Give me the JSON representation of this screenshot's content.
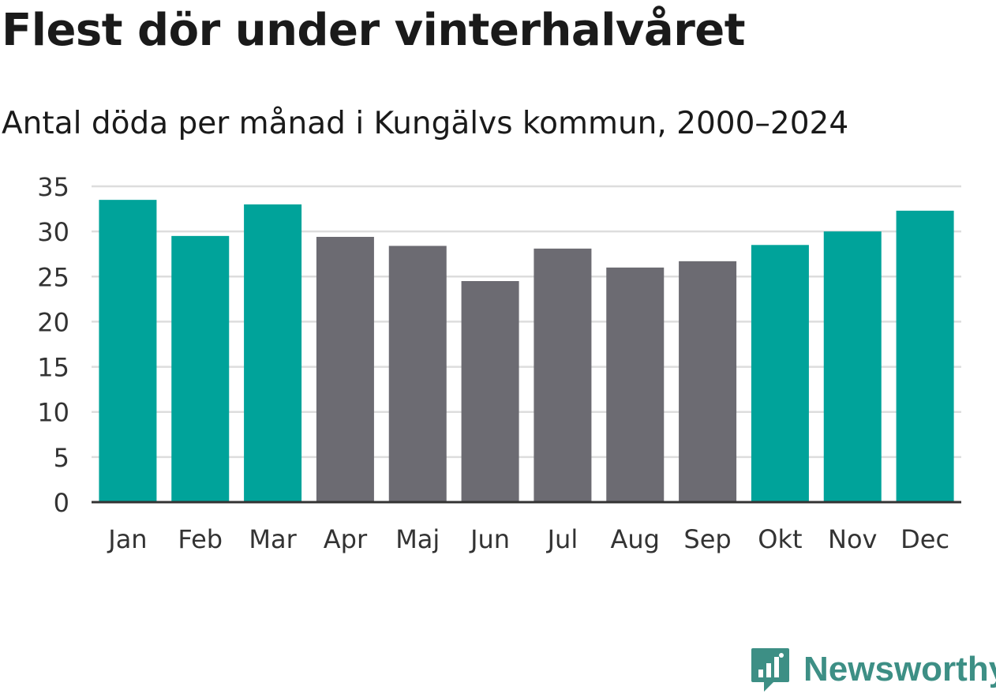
{
  "header": {
    "title": "Flest dör under vinterhalvåret",
    "subtitle": "Antal döda per månad i Kungälvs kommun, 2000–2024"
  },
  "colors": {
    "winter": "#00a39a",
    "summer": "#6c6b72",
    "grid": "#dddddd",
    "axis": "#333333",
    "brand": "#3d8f85"
  },
  "chart_data": {
    "type": "bar",
    "title": "Flest dör under vinterhalvåret",
    "subtitle": "Antal döda per månad i Kungälvs kommun, 2000–2024",
    "xlabel": "",
    "ylabel": "",
    "ylim": [
      0,
      35
    ],
    "yticks": [
      0,
      5,
      10,
      15,
      20,
      25,
      30,
      35
    ],
    "grid": true,
    "categories": [
      "Jan",
      "Feb",
      "Mar",
      "Apr",
      "Maj",
      "Jun",
      "Jul",
      "Aug",
      "Sep",
      "Okt",
      "Nov",
      "Dec"
    ],
    "values": [
      33.5,
      29.5,
      33.0,
      29.4,
      28.4,
      24.5,
      28.1,
      26.0,
      26.7,
      28.5,
      30.0,
      32.3
    ],
    "groups": [
      "winter",
      "winter",
      "winter",
      "summer",
      "summer",
      "summer",
      "summer",
      "summer",
      "summer",
      "winter",
      "winter",
      "winter"
    ]
  },
  "footer": {
    "logo_icon": "newsworthy-chat-bars-icon",
    "brand": "Newsworthy"
  }
}
